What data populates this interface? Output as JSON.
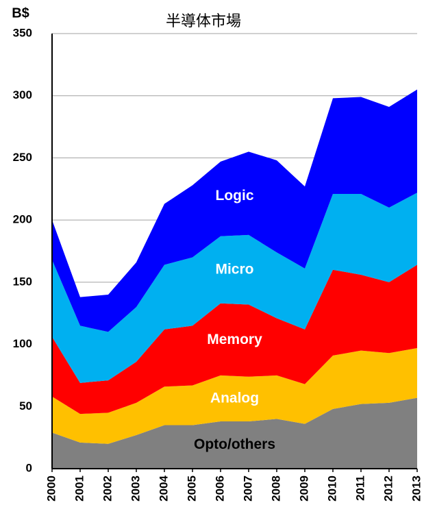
{
  "chart_data": {
    "type": "stacked_area",
    "title": "半導体市場",
    "y_label": "B$",
    "x": [
      "2000",
      "2001",
      "2002",
      "2003",
      "2004",
      "2005",
      "2006",
      "2007",
      "2008",
      "2009",
      "2010",
      "2011",
      "2012",
      "2013"
    ],
    "series": [
      {
        "name": "Opto/others",
        "color": "#808080",
        "label_color": "#000000",
        "values": [
          29,
          21,
          20,
          27,
          35,
          35,
          38,
          38,
          40,
          36,
          48,
          52,
          53,
          57
        ]
      },
      {
        "name": "Analog",
        "color": "#ffc000",
        "label_color": "#ffffff",
        "values": [
          29,
          23,
          25,
          26,
          31,
          32,
          37,
          36,
          35,
          32,
          43,
          43,
          40,
          40
        ]
      },
      {
        "name": "Memory",
        "color": "#ff0000",
        "label_color": "#ffffff",
        "values": [
          48,
          25,
          26,
          33,
          46,
          48,
          58,
          58,
          46,
          44,
          69,
          61,
          57,
          67
        ]
      },
      {
        "name": "Micro",
        "color": "#00b0f0",
        "label_color": "#ffffff",
        "values": [
          62,
          46,
          39,
          44,
          52,
          55,
          54,
          56,
          53,
          49,
          61,
          65,
          60,
          58
        ]
      },
      {
        "name": "Logic",
        "color": "#0000ff",
        "label_color": "#ffffff",
        "values": [
          32,
          23,
          30,
          36,
          49,
          58,
          60,
          67,
          74,
          66,
          77,
          78,
          81,
          83
        ]
      }
    ],
    "ylim": [
      0,
      350
    ],
    "yticks": [
      0,
      50,
      100,
      150,
      200,
      250,
      300,
      350
    ],
    "grid": true
  }
}
